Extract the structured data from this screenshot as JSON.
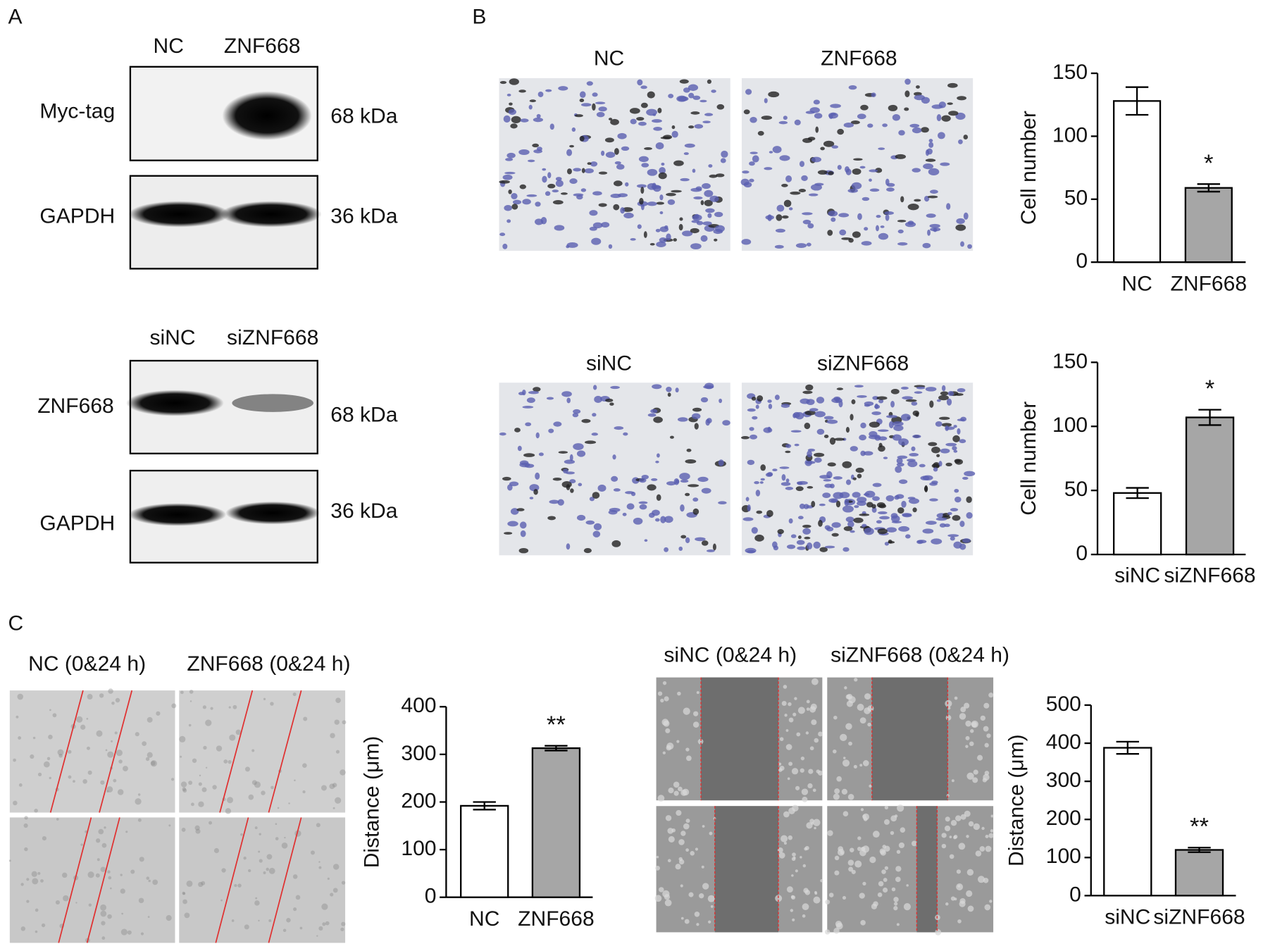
{
  "panel_labels": [
    "A",
    "B",
    "C"
  ],
  "blots": [
    {
      "lanes": [
        "NC",
        "ZNF668"
      ],
      "rows": [
        {
          "label": "Myc-tag",
          "size": "68 kDa"
        },
        {
          "label": "GAPDH",
          "size": "36 kDa"
        }
      ]
    },
    {
      "lanes": [
        "siNC",
        "siZNF668"
      ],
      "rows": [
        {
          "label": "ZNF668",
          "size": "68 kDa"
        },
        {
          "label": "GAPDH",
          "size": "36 kDa"
        }
      ]
    }
  ],
  "micrographs": [
    {
      "labels": [
        "NC",
        "ZNF668"
      ]
    },
    {
      "labels": [
        "siNC",
        "siZNF668"
      ]
    },
    {
      "labels": [
        "NC (0&24 h)",
        "ZNF668 (0&24 h)"
      ]
    },
    {
      "labels": [
        "siNC (0&24 h)",
        "siZNF668 (0&24 h)"
      ]
    }
  ],
  "chart_data": [
    {
      "type": "bar",
      "y_label": "Cell number",
      "categories": [
        "NC",
        "ZNF668"
      ],
      "values": [
        128,
        59
      ],
      "errors": [
        11,
        3
      ],
      "colors": [
        "#ffffff",
        "#a6a6a6"
      ],
      "significance": [
        null,
        "*"
      ],
      "ylim": [
        0,
        150
      ],
      "yticks": [
        0,
        50,
        100,
        150
      ]
    },
    {
      "type": "bar",
      "y_label": "Cell number",
      "categories": [
        "siNC",
        "siZNF668"
      ],
      "values": [
        48,
        107
      ],
      "errors": [
        4,
        6
      ],
      "colors": [
        "#ffffff",
        "#a6a6a6"
      ],
      "significance": [
        null,
        "*"
      ],
      "ylim": [
        0,
        150
      ],
      "yticks": [
        0,
        50,
        100,
        150
      ]
    },
    {
      "type": "bar",
      "y_label": "Distance (μm)",
      "categories": [
        "NC",
        "ZNF668"
      ],
      "values": [
        192,
        313
      ],
      "errors": [
        8,
        5
      ],
      "colors": [
        "#ffffff",
        "#a6a6a6"
      ],
      "significance": [
        null,
        "**"
      ],
      "ylim": [
        0,
        400
      ],
      "yticks": [
        0,
        100,
        200,
        300,
        400
      ]
    },
    {
      "type": "bar",
      "y_label": "Distance (μm)",
      "categories": [
        "siNC",
        "siZNF668"
      ],
      "values": [
        388,
        120
      ],
      "errors": [
        16,
        6
      ],
      "colors": [
        "#ffffff",
        "#a6a6a6"
      ],
      "significance": [
        null,
        "**"
      ],
      "ylim": [
        0,
        500
      ],
      "yticks": [
        0,
        100,
        200,
        300,
        400,
        500
      ]
    }
  ]
}
